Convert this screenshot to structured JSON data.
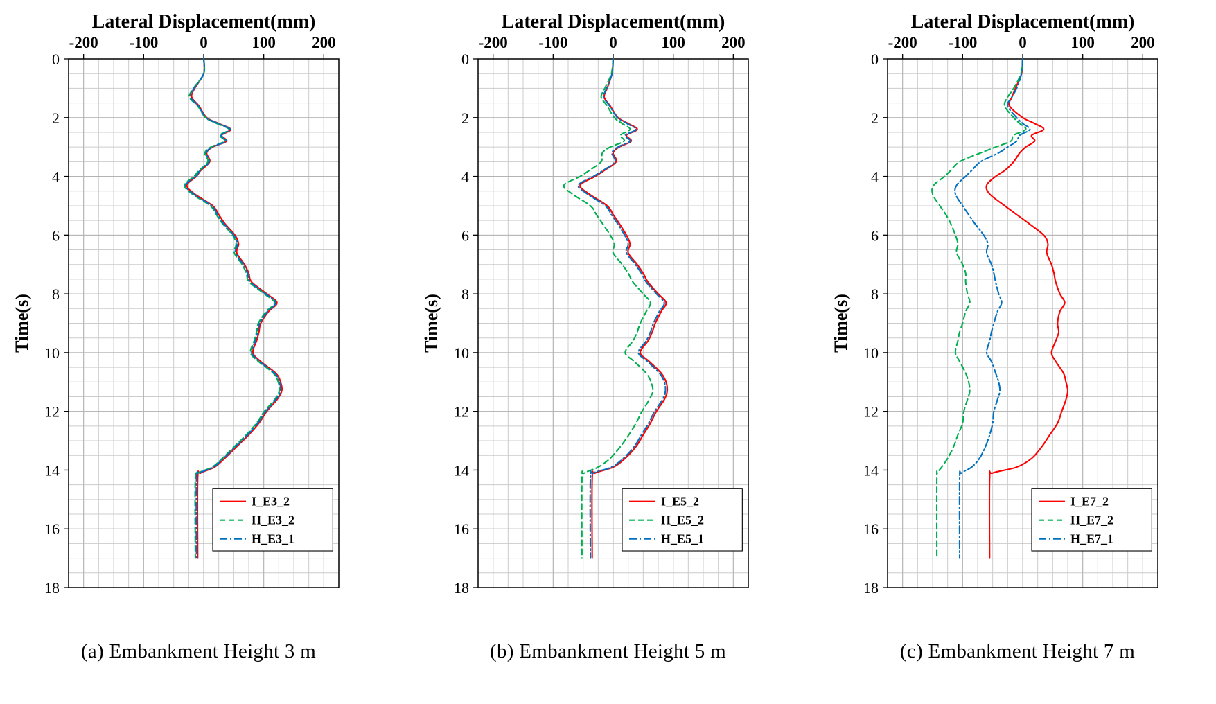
{
  "figure": {
    "background": "#ffffff",
    "grid_color": "#cccccc",
    "major_grid_color": "#b3b3b3",
    "axis_color": "#000000"
  },
  "chart_data": [
    {
      "type": "line",
      "title": "Lateral Displacement(mm)",
      "ylabel": "Time(s)",
      "caption": "(a) Embankment Height 3 m",
      "xlim": [
        -225,
        225
      ],
      "ylim": [
        0,
        18
      ],
      "x_ticks": [
        -200,
        -100,
        0,
        100,
        200
      ],
      "y_ticks": [
        0,
        2,
        4,
        6,
        8,
        10,
        12,
        14,
        16,
        18
      ],
      "x_minor_step": 25,
      "y_minor_step": 0.5,
      "grid": true,
      "legend_position": "lower-right",
      "t": [
        0,
        0.5,
        1.0,
        1.3,
        1.6,
        2.0,
        2.2,
        2.4,
        2.6,
        2.8,
        3.0,
        3.2,
        3.5,
        3.8,
        4.0,
        4.3,
        4.6,
        5.0,
        5.3,
        5.6,
        6.0,
        6.3,
        6.6,
        7.0,
        7.3,
        7.6,
        8.0,
        8.3,
        8.6,
        9.0,
        9.3,
        9.6,
        10.0,
        10.3,
        10.7,
        11.0,
        11.3,
        11.6,
        12.0,
        12.4,
        12.8,
        13.2,
        13.6,
        13.9,
        14.1,
        14.3,
        17.0
      ],
      "series": [
        {
          "name": "I_E3_2",
          "color": "#ff0000",
          "dash": "solid",
          "values": [
            0,
            0,
            -15,
            -20,
            -8,
            5,
            25,
            45,
            30,
            38,
            15,
            5,
            10,
            -5,
            -12,
            -28,
            -15,
            15,
            25,
            35,
            52,
            58,
            55,
            68,
            75,
            80,
            105,
            122,
            108,
            95,
            92,
            88,
            82,
            95,
            120,
            128,
            130,
            122,
            105,
            92,
            75,
            55,
            35,
            18,
            -5,
            -10,
            -10
          ]
        },
        {
          "name": "H_E3_2",
          "color": "#00b050",
          "dash": "dashed",
          "values": [
            0,
            0,
            -17,
            -24,
            -10,
            3,
            22,
            42,
            27,
            35,
            12,
            2,
            7,
            -8,
            -16,
            -32,
            -19,
            11,
            21,
            31,
            48,
            54,
            51,
            64,
            71,
            76,
            101,
            118,
            104,
            91,
            88,
            84,
            78,
            91,
            116,
            124,
            126,
            118,
            101,
            88,
            71,
            51,
            31,
            14,
            -9,
            -14,
            -14
          ]
        },
        {
          "name": "H_E3_1",
          "color": "#0070c0",
          "dash": "dashdot",
          "values": [
            0,
            0,
            -16,
            -22,
            -9,
            4,
            24,
            44,
            29,
            37,
            14,
            4,
            9,
            -6,
            -13,
            -30,
            -17,
            13,
            23,
            33,
            50,
            56,
            53,
            66,
            73,
            78,
            103,
            120,
            106,
            93,
            90,
            86,
            80,
            93,
            118,
            126,
            128,
            120,
            103,
            90,
            73,
            53,
            33,
            16,
            -7,
            -12,
            -12
          ]
        }
      ]
    },
    {
      "type": "line",
      "title": "Lateral Displacement(mm)",
      "ylabel": "Time(s)",
      "caption": "(b) Embankment Height 5 m",
      "xlim": [
        -225,
        225
      ],
      "ylim": [
        0,
        18
      ],
      "x_ticks": [
        -200,
        -100,
        0,
        100,
        200
      ],
      "y_ticks": [
        0,
        2,
        4,
        6,
        8,
        10,
        12,
        14,
        16,
        18
      ],
      "x_minor_step": 25,
      "y_minor_step": 0.5,
      "grid": true,
      "legend_position": "lower-right",
      "t": [
        0,
        0.5,
        1.0,
        1.3,
        1.6,
        2.0,
        2.2,
        2.4,
        2.6,
        2.8,
        3.0,
        3.2,
        3.5,
        3.8,
        4.0,
        4.3,
        4.6,
        5.0,
        5.3,
        5.6,
        6.0,
        6.3,
        6.6,
        7.0,
        7.3,
        7.6,
        8.0,
        8.3,
        8.6,
        9.0,
        9.3,
        9.6,
        10.0,
        10.3,
        10.7,
        11.0,
        11.3,
        11.6,
        12.0,
        12.4,
        12.8,
        13.2,
        13.6,
        13.9,
        14.1,
        14.3,
        17.0
      ],
      "series": [
        {
          "name": "I_E5_2",
          "color": "#ff0000",
          "dash": "solid",
          "values": [
            0,
            -2,
            -10,
            -15,
            -5,
            8,
            25,
            40,
            22,
            30,
            10,
            0,
            5,
            -15,
            -30,
            -55,
            -40,
            -10,
            0,
            10,
            22,
            28,
            25,
            40,
            50,
            58,
            75,
            88,
            80,
            70,
            65,
            58,
            45,
            60,
            80,
            88,
            90,
            85,
            72,
            62,
            50,
            38,
            20,
            0,
            -30,
            -35,
            -35
          ]
        },
        {
          "name": "H_E5_2",
          "color": "#00b050",
          "dash": "dashed",
          "values": [
            0,
            -3,
            -14,
            -20,
            -10,
            2,
            15,
            28,
            12,
            18,
            -5,
            -18,
            -20,
            -40,
            -55,
            -82,
            -68,
            -38,
            -28,
            -18,
            -5,
            2,
            0,
            15,
            25,
            33,
            50,
            62,
            55,
            45,
            40,
            33,
            20,
            35,
            55,
            63,
            66,
            60,
            48,
            38,
            26,
            12,
            -5,
            -25,
            -48,
            -52,
            -52
          ]
        },
        {
          "name": "H_E5_1",
          "color": "#0070c0",
          "dash": "dashdot",
          "values": [
            0,
            -2,
            -11,
            -16,
            -6,
            7,
            23,
            38,
            20,
            28,
            8,
            -2,
            3,
            -17,
            -33,
            -58,
            -43,
            -13,
            -3,
            7,
            19,
            25,
            22,
            37,
            47,
            55,
            72,
            85,
            77,
            67,
            62,
            55,
            42,
            57,
            77,
            85,
            87,
            82,
            69,
            59,
            47,
            35,
            17,
            -3,
            -33,
            -38,
            -38
          ]
        }
      ]
    },
    {
      "type": "line",
      "title": "Lateral Displacement(mm)",
      "ylabel": "Time(s)",
      "caption": "(c) Embankment Height 7 m",
      "xlim": [
        -225,
        225
      ],
      "ylim": [
        0,
        18
      ],
      "x_ticks": [
        -200,
        -100,
        0,
        100,
        200
      ],
      "y_ticks": [
        0,
        2,
        4,
        6,
        8,
        10,
        12,
        14,
        16,
        18
      ],
      "x_minor_step": 25,
      "y_minor_step": 0.5,
      "grid": true,
      "legend_position": "lower-right",
      "t": [
        0,
        0.5,
        1.0,
        1.3,
        1.6,
        2.0,
        2.2,
        2.4,
        2.6,
        2.8,
        3.0,
        3.2,
        3.5,
        3.8,
        4.0,
        4.3,
        4.6,
        5.0,
        5.3,
        5.6,
        6.0,
        6.3,
        6.6,
        7.0,
        7.3,
        7.6,
        8.0,
        8.3,
        8.6,
        9.0,
        9.3,
        9.6,
        10.0,
        10.3,
        10.7,
        11.0,
        11.3,
        11.6,
        12.0,
        12.4,
        12.8,
        13.2,
        13.6,
        13.9,
        14.1,
        14.3,
        17.0
      ],
      "series": [
        {
          "name": "I_E7_2",
          "color": "#ff0000",
          "dash": "solid",
          "values": [
            0,
            -2,
            -12,
            -18,
            -22,
            0,
            20,
            35,
            15,
            20,
            5,
            -5,
            -15,
            -30,
            -45,
            -60,
            -55,
            -30,
            -10,
            10,
            35,
            42,
            40,
            48,
            52,
            55,
            62,
            70,
            62,
            58,
            60,
            55,
            48,
            55,
            68,
            72,
            75,
            72,
            65,
            58,
            45,
            32,
            15,
            -10,
            -50,
            -55,
            -55
          ]
        },
        {
          "name": "H_E7_2",
          "color": "#00b050",
          "dash": "dashed",
          "values": [
            0,
            -3,
            -15,
            -25,
            -30,
            -15,
            -5,
            5,
            -15,
            -20,
            -45,
            -70,
            -105,
            -120,
            -130,
            -148,
            -150,
            -138,
            -128,
            -120,
            -112,
            -108,
            -110,
            -100,
            -95,
            -95,
            -92,
            -88,
            -95,
            -100,
            -105,
            -108,
            -112,
            -105,
            -95,
            -90,
            -88,
            -92,
            -98,
            -100,
            -108,
            -115,
            -125,
            -135,
            -142,
            -143,
            -143
          ]
        },
        {
          "name": "H_E7_1",
          "color": "#0070c0",
          "dash": "dashdot",
          "values": [
            0,
            -2,
            -10,
            -18,
            -25,
            -10,
            0,
            12,
            -5,
            -10,
            -25,
            -40,
            -70,
            -85,
            -95,
            -110,
            -112,
            -100,
            -90,
            -80,
            -65,
            -58,
            -60,
            -52,
            -48,
            -45,
            -40,
            -35,
            -42,
            -48,
            -52,
            -55,
            -60,
            -52,
            -45,
            -40,
            -38,
            -42,
            -48,
            -50,
            -55,
            -62,
            -72,
            -85,
            -102,
            -105,
            -105
          ]
        }
      ]
    }
  ]
}
